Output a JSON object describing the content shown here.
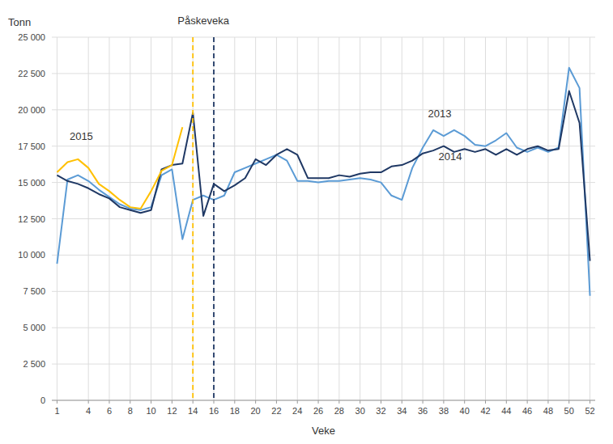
{
  "chart_data": {
    "type": "line",
    "x_label": "Veke",
    "y_label": "Tonn",
    "x": [
      1,
      2,
      3,
      4,
      5,
      6,
      7,
      8,
      9,
      10,
      11,
      12,
      13,
      14,
      15,
      16,
      17,
      18,
      19,
      20,
      21,
      22,
      23,
      24,
      25,
      26,
      27,
      28,
      29,
      30,
      31,
      32,
      33,
      34,
      35,
      36,
      37,
      38,
      39,
      40,
      41,
      42,
      43,
      44,
      45,
      46,
      47,
      48,
      49,
      50,
      51,
      52
    ],
    "series": [
      {
        "color": "#5B9BD5",
        "values": [
          9400,
          15200,
          15500,
          15100,
          14500,
          14000,
          13500,
          13200,
          13100,
          13300,
          15500,
          15900,
          11100,
          13800,
          14100,
          13800,
          14100,
          15700,
          16000,
          16300,
          16600,
          16900,
          16500,
          15100,
          15100,
          15000,
          15100,
          15100,
          15200,
          15300,
          15200,
          15000,
          14100,
          13800,
          16000,
          17400,
          18600,
          18200,
          18600,
          18200,
          17600,
          17500,
          17900,
          18400,
          17400,
          17100,
          17400,
          17100,
          17400,
          22900,
          21500,
          7200
        ]
      },
      {
        "color": "#1F3864",
        "values": [
          15500,
          15100,
          14900,
          14600,
          14200,
          13900,
          13300,
          13100,
          12900,
          13100,
          15900,
          16200,
          16300,
          19800,
          12700,
          14900,
          14400,
          14800,
          15300,
          16600,
          16200,
          16900,
          17300,
          16900,
          15300,
          15300,
          15300,
          15500,
          15400,
          15600,
          15700,
          15700,
          16100,
          16200,
          16500,
          17000,
          17200,
          17500,
          17100,
          17300,
          17100,
          17300,
          16900,
          17300,
          16900,
          17300,
          17500,
          17200,
          17300,
          21300,
          19100,
          9600
        ]
      },
      {
        "color": "#FFC000",
        "values": [
          15700,
          16400,
          16600,
          16000,
          14900,
          14400,
          13800,
          13300,
          13200,
          14400,
          15800,
          16200,
          18800,
          null,
          null,
          null,
          null,
          null,
          null,
          null,
          null,
          null,
          null,
          null,
          null,
          null,
          null,
          null,
          null,
          null,
          null,
          null,
          null,
          null,
          null,
          null,
          null,
          null,
          null,
          null,
          null,
          null,
          null,
          null,
          null,
          null,
          null,
          null,
          null,
          null,
          null,
          null
        ]
      }
    ],
    "xlim": [
      0.5,
      52.5
    ],
    "xticks": [
      1,
      4,
      6,
      8,
      10,
      12,
      14,
      16,
      18,
      20,
      22,
      24,
      26,
      28,
      30,
      32,
      34,
      36,
      38,
      40,
      42,
      44,
      46,
      48,
      50,
      52
    ],
    "ylim": [
      0,
      25000
    ],
    "yticks": [
      0,
      {
        "value": 2500,
        "label": "2 500"
      },
      {
        "value": 5000,
        "label": "5 000"
      },
      {
        "value": 7500,
        "label": "7 500"
      },
      {
        "value": 10000,
        "label": "10 000"
      },
      {
        "value": 12500,
        "label": "12 500"
      },
      {
        "value": 15000,
        "label": "15 000"
      },
      {
        "value": 17500,
        "label": "17 500"
      },
      {
        "value": 20000,
        "label": "20 000"
      },
      {
        "value": 22500,
        "label": "22 500"
      },
      {
        "value": 25000,
        "label": "25 000"
      }
    ],
    "grid": true,
    "vlines": [
      {
        "x": 14,
        "color": "#FFC000",
        "line_style": "dashed"
      },
      {
        "x": 16,
        "color": "#1F3864",
        "line_style": "dashed"
      }
    ],
    "annotations": [
      {
        "text": "Påskeveka",
        "x": 15.0,
        "y": 25800,
        "align": "center"
      },
      {
        "text": "2015",
        "x": 2.2,
        "y": 17800,
        "align": "left"
      },
      {
        "text": "2013",
        "x": 36.5,
        "y": 19400,
        "align": "left"
      },
      {
        "text": "2014",
        "x": 37.5,
        "y": 16400,
        "align": "left"
      }
    ]
  }
}
